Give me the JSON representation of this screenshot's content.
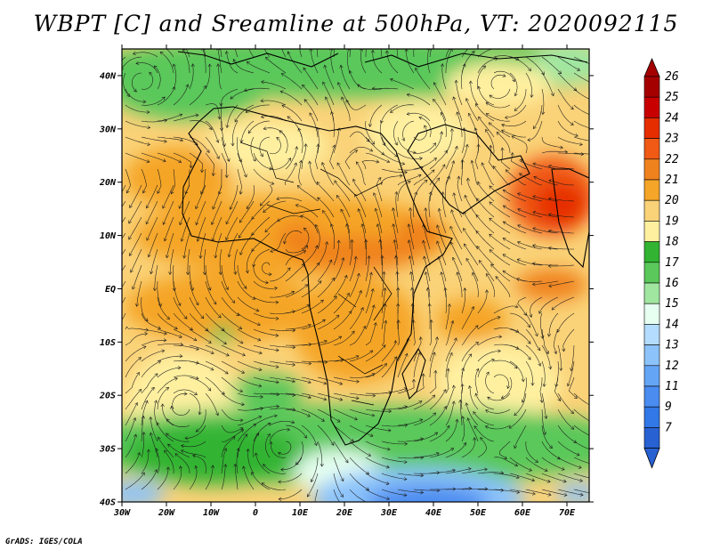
{
  "title": "WBPT [C] and Sreamline at 500hPa, VT: 2020092115",
  "credit": "GrADS: IGES/COLA",
  "map": {
    "lon_range": [
      -30,
      75
    ],
    "lat_range": [
      -40,
      45
    ],
    "lat_ticks": [
      {
        "value": 40,
        "label": "40N"
      },
      {
        "value": 30,
        "label": "30N"
      },
      {
        "value": 20,
        "label": "20N"
      },
      {
        "value": 10,
        "label": "10N"
      },
      {
        "value": 0,
        "label": "EQ"
      },
      {
        "value": -10,
        "label": "10S"
      },
      {
        "value": -20,
        "label": "20S"
      },
      {
        "value": -30,
        "label": "30S"
      },
      {
        "value": -40,
        "label": "40S"
      }
    ],
    "lon_ticks": [
      {
        "value": -30,
        "label": "30W"
      },
      {
        "value": -20,
        "label": "20W"
      },
      {
        "value": -10,
        "label": "10W"
      },
      {
        "value": 0,
        "label": "0"
      },
      {
        "value": 10,
        "label": "10E"
      },
      {
        "value": 20,
        "label": "20E"
      },
      {
        "value": 30,
        "label": "30E"
      },
      {
        "value": 40,
        "label": "40E"
      },
      {
        "value": 50,
        "label": "50E"
      },
      {
        "value": 60,
        "label": "60E"
      },
      {
        "value": 70,
        "label": "70E"
      }
    ]
  },
  "colorbar": {
    "levels": [
      {
        "label": "26",
        "color": "#a50000"
      },
      {
        "label": "25",
        "color": "#c80000"
      },
      {
        "label": "24",
        "color": "#e62d00"
      },
      {
        "label": "23",
        "color": "#f05a14"
      },
      {
        "label": "22",
        "color": "#f0821e"
      },
      {
        "label": "21",
        "color": "#f5a528"
      },
      {
        "label": "20",
        "color": "#fad278"
      },
      {
        "label": "19",
        "color": "#fff0a0"
      },
      {
        "label": "18",
        "color": "#32b432"
      },
      {
        "label": "17",
        "color": "#5ac85a"
      },
      {
        "label": "16",
        "color": "#a0e6a0"
      },
      {
        "label": "15",
        "color": "#e6fff0"
      },
      {
        "label": "14",
        "color": "#b4dcff"
      },
      {
        "label": "13",
        "color": "#8cc3fa"
      },
      {
        "label": "12",
        "color": "#64a5f5"
      },
      {
        "label": "11",
        "color": "#4b8cf0"
      },
      {
        "label": "9",
        "color": "#3278e6"
      },
      {
        "label": "7",
        "color": "#2861d2"
      }
    ],
    "bottom_color": "#2861d2"
  }
}
